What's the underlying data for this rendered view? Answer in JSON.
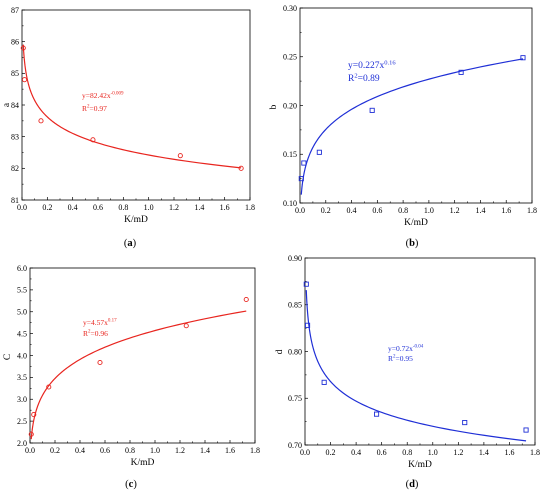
{
  "chart_data": [
    {
      "type": "scatter",
      "panel_label": "(a)",
      "xlabel": "K/mD",
      "ylabel": "a",
      "xlim": [
        0,
        1.8
      ],
      "ylim": [
        81,
        87
      ],
      "xticks": [
        "0.0",
        "0.2",
        "0.4",
        "0.6",
        "0.8",
        "1.0",
        "1.2",
        "1.4",
        "1.6",
        "1.8"
      ],
      "yticks": [
        "81",
        "82",
        "83",
        "84",
        "85",
        "86",
        "87"
      ],
      "marker": "circle",
      "color": "#e8251f",
      "points": {
        "x": [
          0.01,
          0.02,
          0.15,
          0.56,
          1.25,
          1.73
        ],
        "y": [
          85.8,
          84.8,
          83.5,
          82.9,
          82.4,
          82.0
        ]
      },
      "fit": {
        "coef": 82.42,
        "exp": -0.009
      },
      "equation_base": "y=82.42x",
      "equation_exp": "-0.009",
      "r2_label": "R",
      "r2_sup": "2",
      "r2_value": "=0.97",
      "grid": false
    },
    {
      "type": "scatter",
      "panel_label": "(b)",
      "xlabel": "K/mD",
      "ylabel": "b",
      "xlim": [
        0,
        1.8
      ],
      "ylim": [
        0.1,
        0.3
      ],
      "xticks": [
        "0.0",
        "0.2",
        "0.4",
        "0.6",
        "0.8",
        "1.0",
        "1.2",
        "1.4",
        "1.6",
        "1.8"
      ],
      "yticks": [
        "0.10",
        "0.15",
        "0.20",
        "0.25",
        "0.30"
      ],
      "marker": "square",
      "color": "#1f2fd6",
      "points": {
        "x": [
          0.01,
          0.03,
          0.15,
          0.56,
          1.25,
          1.73
        ],
        "y": [
          0.125,
          0.141,
          0.152,
          0.195,
          0.234,
          0.249
        ]
      },
      "fit": {
        "coef": 0.227,
        "exp": 0.16
      },
      "equation_base": "y=0.227x",
      "equation_exp": "0.16",
      "r2_label": "R",
      "r2_sup": "2",
      "r2_value": "=0.89",
      "grid": false
    },
    {
      "type": "scatter",
      "panel_label": "(c)",
      "xlabel": "K/mD",
      "ylabel": "C",
      "xlim": [
        0,
        1.8
      ],
      "ylim": [
        2.0,
        6.0
      ],
      "xticks": [
        "0.0",
        "0.2",
        "0.4",
        "0.6",
        "0.8",
        "1.0",
        "1.2",
        "1.4",
        "1.6",
        "1.8"
      ],
      "yticks": [
        "2.0",
        "2.5",
        "3.0",
        "3.5",
        "4.0",
        "4.5",
        "5.0",
        "5.5",
        "6.0"
      ],
      "marker": "circle",
      "color": "#e8251f",
      "points": {
        "x": [
          0.01,
          0.03,
          0.15,
          0.56,
          1.25,
          1.73
        ],
        "y": [
          2.2,
          2.65,
          3.28,
          3.84,
          4.68,
          5.28
        ]
      },
      "fit": {
        "coef": 4.57,
        "exp": 0.17
      },
      "equation_base": "y=4.57x",
      "equation_exp": "0.17",
      "r2_label": "R",
      "r2_sup": "2",
      "r2_value": "=0.96",
      "grid": false
    },
    {
      "type": "scatter",
      "panel_label": "(d)",
      "xlabel": "K/mD",
      "ylabel": "d",
      "xlim": [
        0,
        1.8
      ],
      "ylim": [
        0.7,
        0.9
      ],
      "xticks": [
        "0.0",
        "0.2",
        "0.4",
        "0.6",
        "0.8",
        "1.0",
        "1.2",
        "1.4",
        "1.6",
        "1.8"
      ],
      "yticks": [
        "0.70",
        "0.75",
        "0.80",
        "0.85",
        "0.90"
      ],
      "marker": "square",
      "color": "#1f2fd6",
      "points": {
        "x": [
          0.01,
          0.02,
          0.15,
          0.56,
          1.25,
          1.73
        ],
        "y": [
          0.872,
          0.828,
          0.767,
          0.733,
          0.724,
          0.716
        ]
      },
      "fit": {
        "coef": 0.72,
        "exp": -0.04
      },
      "equation_base": "y=0.72x",
      "equation_exp": "-0.04",
      "r2_label": "R",
      "r2_sup": "2",
      "r2_value": "=0.95",
      "grid": false
    }
  ]
}
